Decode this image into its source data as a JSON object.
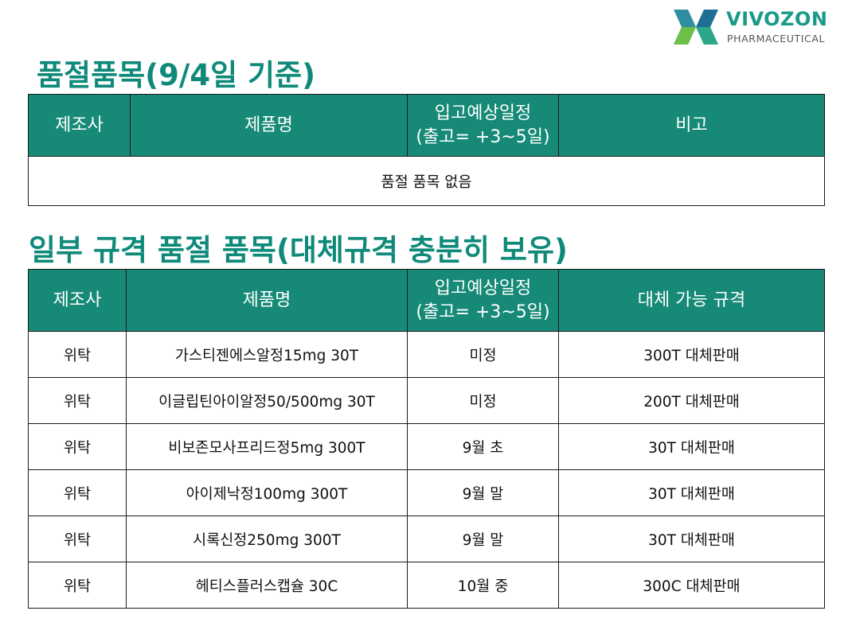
{
  "brand": {
    "name": "VIVOZON",
    "sub": "PHARMACEUTICAL",
    "colors": {
      "primary": "#0f8a7a",
      "header_bg": "#168a77"
    }
  },
  "section1": {
    "title": "품절품목(9/4일 기준)",
    "headers": [
      "제조사",
      "제품명",
      "입고예상일정",
      "(출고= +3~5일)",
      "비고"
    ],
    "empty_message": "품절 품목 없음"
  },
  "section2": {
    "title": "일부 규격 품절 품목(대체규격 충분히 보유)",
    "headers": [
      "제조사",
      "제품명",
      "입고예상일정",
      "(출고= +3~5일)",
      "대체 가능 규격"
    ],
    "rows": [
      {
        "maker": "위탁",
        "product": "가스티젠에스알정15mg 30T",
        "schedule": "미정",
        "alt": "300T 대체판매"
      },
      {
        "maker": "위탁",
        "product": "이글립틴아이알정50/500mg 30T",
        "schedule": "미정",
        "alt": "200T 대체판매"
      },
      {
        "maker": "위탁",
        "product": "비보존모사프리드정5mg 300T",
        "schedule": "9월 초",
        "alt": "30T 대체판매"
      },
      {
        "maker": "위탁",
        "product": "아이제낙정100mg 300T",
        "schedule": "9월 말",
        "alt": "30T 대체판매"
      },
      {
        "maker": "위탁",
        "product": "시록신정250mg 300T",
        "schedule": "9월 말",
        "alt": "30T 대체판매"
      },
      {
        "maker": "위탁",
        "product": "헤티스플러스캡슐 30C",
        "schedule": "10월 중",
        "alt": "300C 대체판매"
      }
    ]
  }
}
